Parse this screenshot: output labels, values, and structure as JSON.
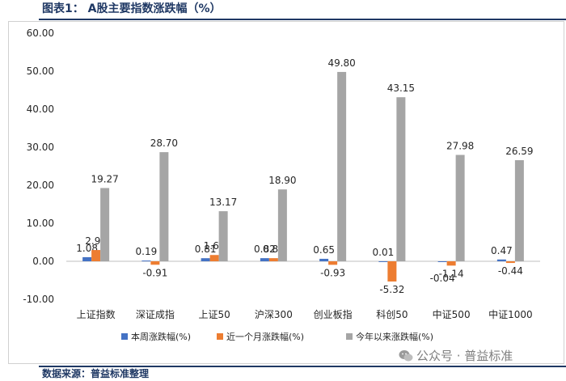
{
  "page": {
    "title": "图表1：  A股主要指数涨跌幅（%）",
    "source": "数据来源：普益标准整理",
    "watermark": "公众号 · 普益标准"
  },
  "chart_data": {
    "type": "bar",
    "categories": [
      "上证指数",
      "深证成指",
      "上证50",
      "沪深300",
      "创业板指",
      "科创50",
      "中证500",
      "中证1000"
    ],
    "series": [
      {
        "name": "本周涨跌幅(%)",
        "values": [
          1.08,
          0.19,
          0.81,
          0.82,
          0.65,
          0.01,
          -0.04,
          0.47
        ],
        "labels": [
          "1.08",
          "0.19",
          "0.81",
          "0.82",
          "0.65",
          "0.01",
          "-0.04",
          "0.47"
        ],
        "color": "#4472c4"
      },
      {
        "name": "近一个月涨跌幅(%)",
        "values": [
          2.96,
          -0.91,
          1.65,
          0.82,
          -0.93,
          -5.32,
          -1.14,
          -0.44
        ],
        "labels": [
          "2.96",
          "-0.91",
          "1.65",
          "0.82",
          "-0.93",
          "-5.32",
          "-1.14",
          "-0.44"
        ],
        "color": "#ed7d31"
      },
      {
        "name": "今年以来涨跌幅(%)",
        "values": [
          19.27,
          28.7,
          13.17,
          18.9,
          49.8,
          43.15,
          27.98,
          26.59
        ],
        "labels": [
          "19.27",
          "28.70",
          "13.17",
          "18.90",
          "49.80",
          "43.15",
          "27.98",
          "26.59"
        ],
        "color": "#a5a5a5"
      }
    ],
    "yticks": [
      "60.00",
      "50.00",
      "40.00",
      "30.00",
      "20.00",
      "10.00",
      "0.00",
      "-10.00"
    ],
    "ylim": [
      -10,
      60
    ],
    "grid": false,
    "legend": "bottom"
  }
}
